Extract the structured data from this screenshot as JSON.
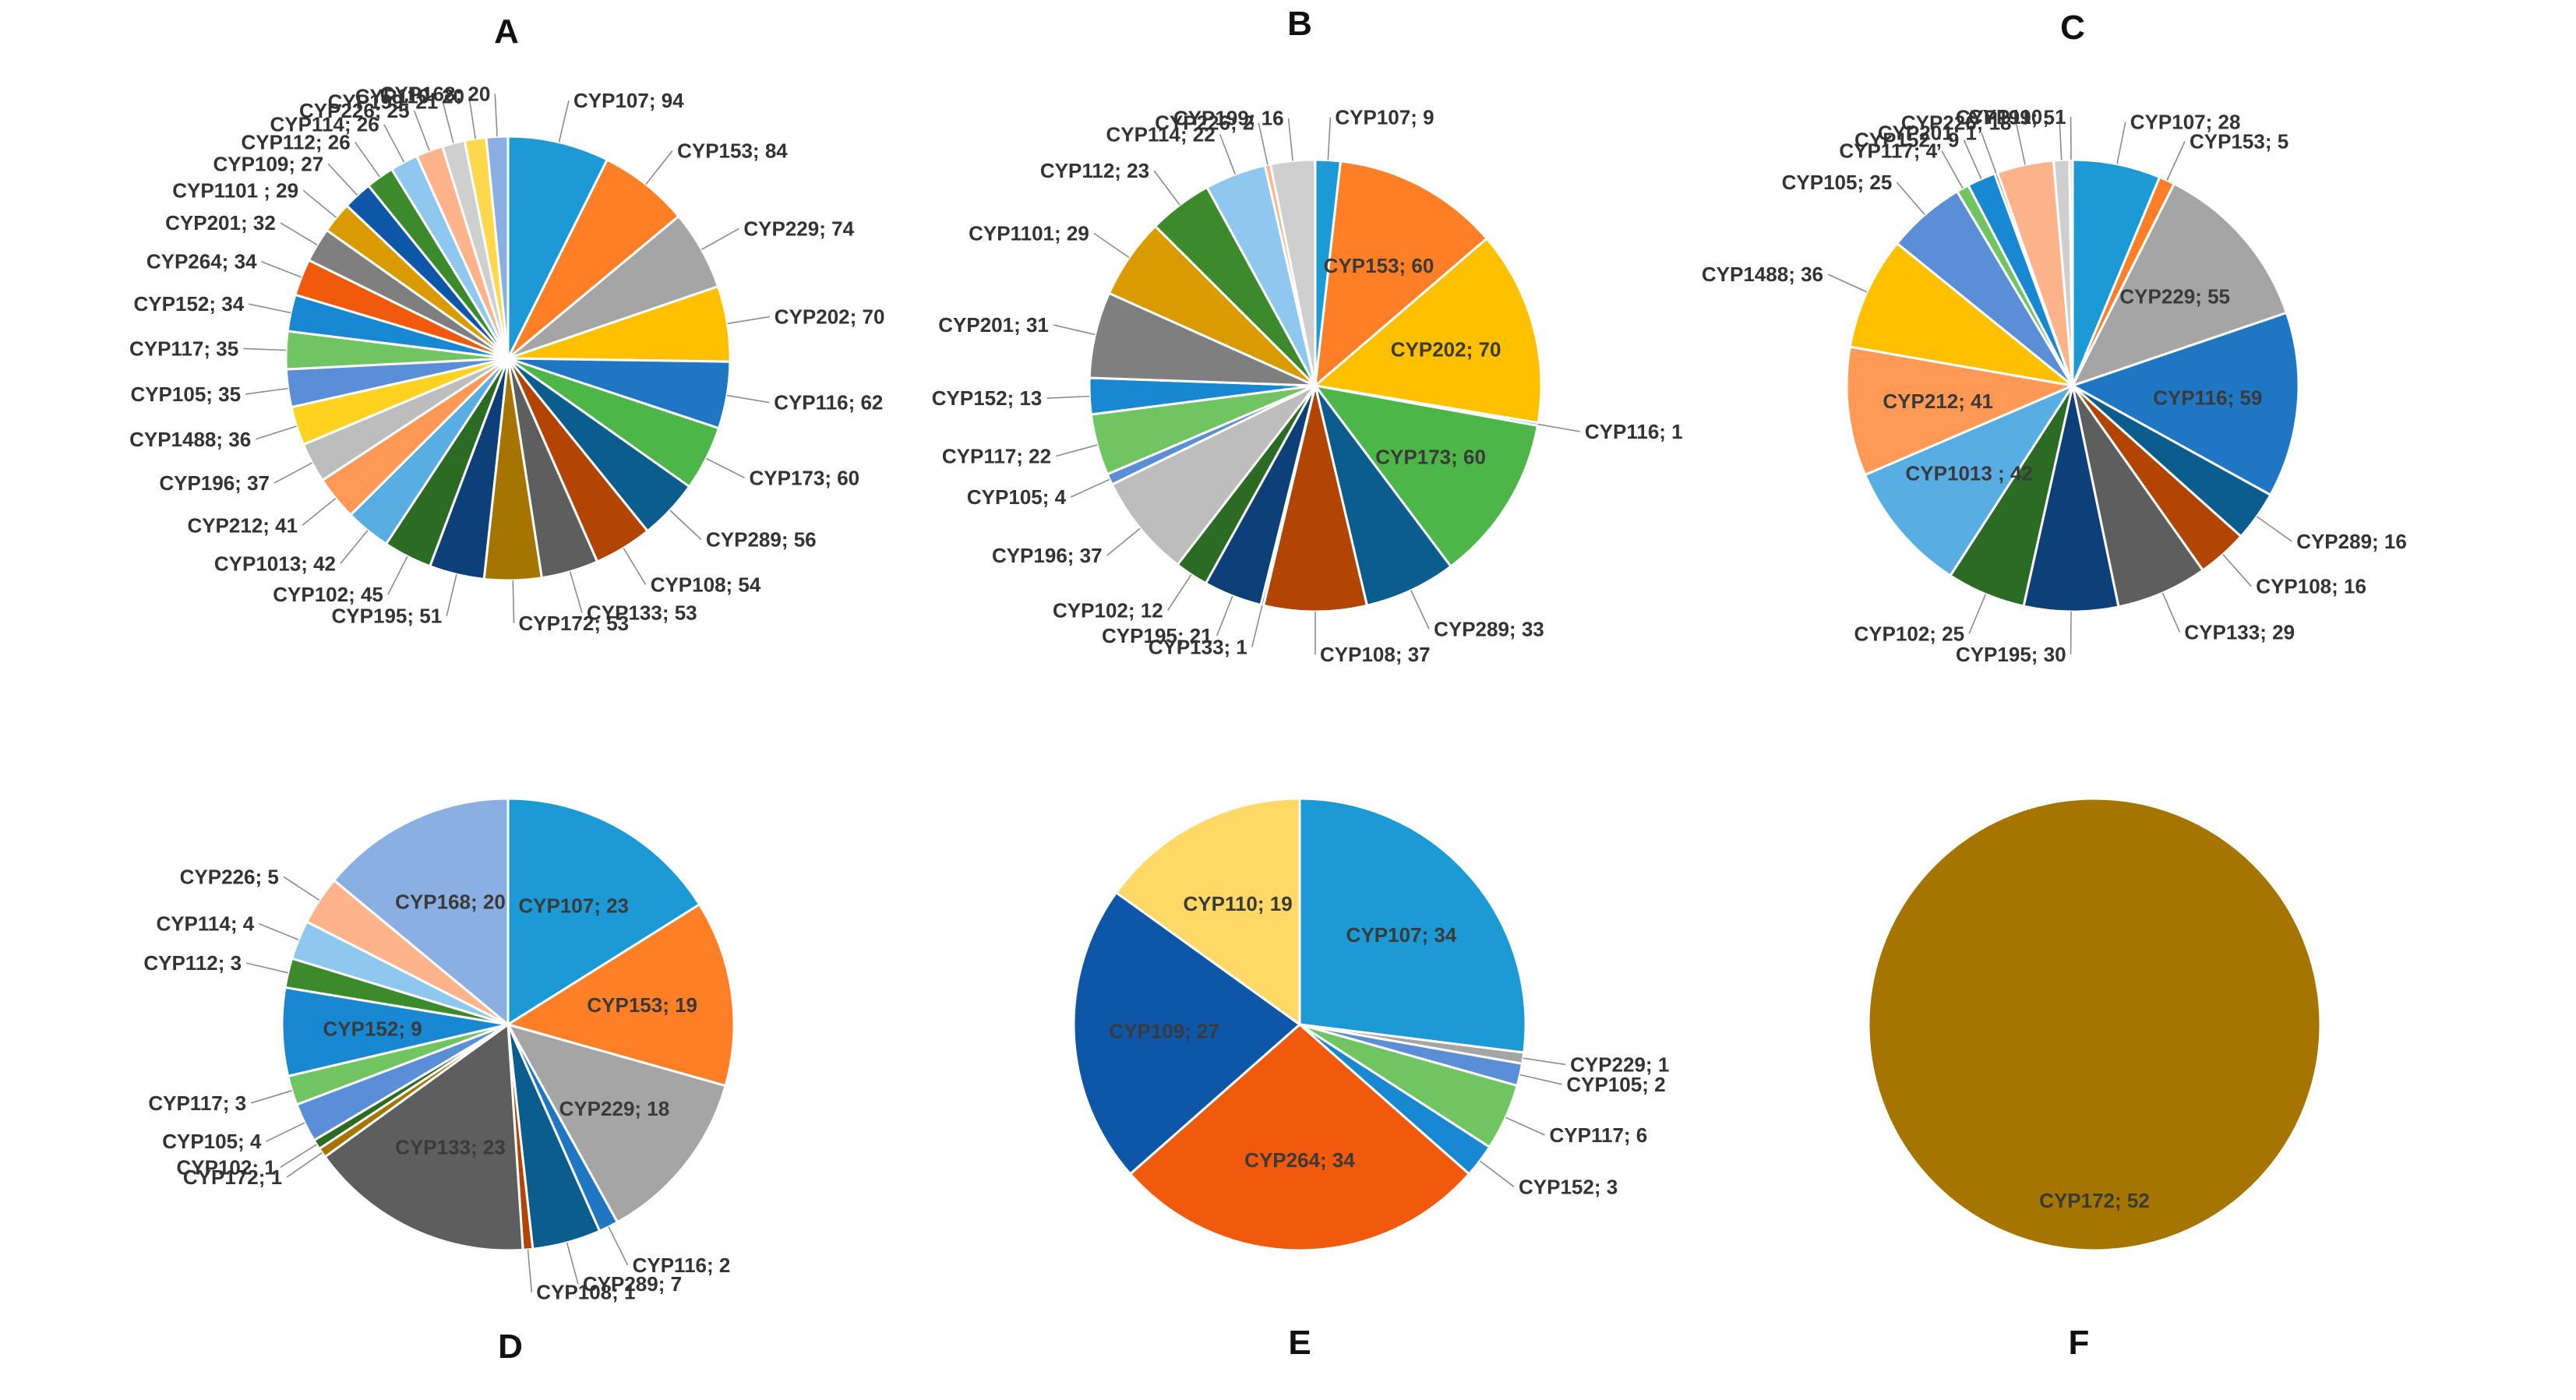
{
  "chart_data": [
    {
      "type": "pie",
      "title": "A",
      "labels": [
        "CYP107",
        "CYP153",
        "CYP229",
        "CYP202",
        "CYP116",
        "CYP173",
        "CYP289",
        "CYP108",
        "CYP133",
        "CYP172",
        "CYP195",
        "CYP102",
        "CYP1013",
        "CYP212",
        "CYP196",
        "CYP1488",
        "CYP105",
        "CYP117",
        "CYP152",
        "CYP264",
        "CYP201",
        "CYP1101",
        "CYP109",
        "CYP112",
        "CYP114",
        "CYP226",
        "CYP199",
        "CYP110",
        "CYP168"
      ],
      "values": [
        94,
        84,
        74,
        70,
        62,
        60,
        56,
        54,
        53,
        53,
        51,
        45,
        42,
        41,
        37,
        36,
        35,
        35,
        34,
        34,
        32,
        29,
        27,
        26,
        26,
        25,
        21,
        20,
        20
      ],
      "colors": [
        "#1b9ad6",
        "#ff7f27",
        "#a5a5a5",
        "#ffc000",
        "#1f77c4",
        "#4db649",
        "#0a5d8c",
        "#b34504",
        "#5e5e5e",
        "#a67500",
        "#0d3f78",
        "#2c6b23",
        "#58aee3",
        "#ff9955",
        "#bdbdbd",
        "#ffd21f",
        "#5a8ed6",
        "#70c462",
        "#1888d2",
        "#f15a0c",
        "#7f7f7f",
        "#d99b00",
        "#0e57a8",
        "#3b8a2c",
        "#8fc8ee",
        "#ffb38a",
        "#cfcfcf",
        "#ffd84d",
        "#8ab0e3"
      ],
      "display_labels": [
        "CYP107; 94",
        "CYP153; 84",
        "CYP229; 74",
        "CYP202; 70",
        "CYP116; 62",
        "CYP173; 60",
        "CYP289; 56",
        "CYP108; 54",
        "CYP133; 53",
        "CYP172; 53",
        "CYP195; 51",
        "CYP102; 45",
        "CYP1013; 42",
        "CYP212; 41",
        "CYP196; 37",
        "CYP1488; 36",
        "CYP105; 35",
        "CYP117; 35",
        "CYP152; 34",
        "CYP264; 34",
        "CYP201; 32",
        "CYP1101 ; 29",
        "CYP109; 27",
        "CYP112; 26",
        "CYP114; 26",
        "CYP226; 25",
        "CYP199; 21",
        "CYP110; 20",
        "CYP168; 20"
      ],
      "label_placement": [
        "out",
        "out",
        "out",
        "out",
        "out",
        "out",
        "out",
        "out",
        "out",
        "out",
        "out",
        "out",
        "out",
        "out",
        "out",
        "out",
        "out",
        "out",
        "out",
        "out",
        "out",
        "out",
        "out",
        "out",
        "out",
        "out",
        "out",
        "out",
        "out"
      ]
    },
    {
      "type": "pie",
      "title": "B",
      "labels": [
        "CYP107",
        "CYP153",
        "CYP202",
        "CYP116",
        "CYP173",
        "CYP289",
        "CYP108",
        "CYP133",
        "CYP195",
        "CYP102",
        "CYP196",
        "CYP105",
        "CYP117",
        "CYP152",
        "CYP201",
        "CYP1101",
        "CYP112",
        "CYP114",
        "CYP226",
        "CYP199"
      ],
      "values": [
        9,
        60,
        70,
        1,
        60,
        33,
        37,
        1,
        21,
        12,
        37,
        4,
        22,
        13,
        31,
        29,
        23,
        22,
        2,
        16
      ],
      "colors": [
        "#1b9ad6",
        "#ff7f27",
        "#ffc000",
        "#1f77c4",
        "#4db649",
        "#0a5d8c",
        "#b34504",
        "#5e5e5e",
        "#0d3f78",
        "#2c6b23",
        "#bdbdbd",
        "#5a8ed6",
        "#70c462",
        "#1888d2",
        "#7f7f7f",
        "#d99b00",
        "#3b8a2c",
        "#8fc8ee",
        "#ffb38a",
        "#cfcfcf"
      ],
      "display_labels": [
        "CYP107; 9",
        "CYP153; 60",
        "CYP202; 70",
        "CYP116; 1",
        "CYP173; 60",
        "CYP289; 33",
        "CYP108; 37",
        "CYP133; 1",
        "CYP195; 21",
        "CYP102; 12",
        "CYP196; 37",
        "CYP105; 4",
        "CYP117; 22",
        "CYP152; 13",
        "CYP201; 31",
        "CYP1101; 29",
        "CYP112; 23",
        "CYP114; 22",
        "CYP226; 2",
        "CYP199; 16"
      ],
      "label_placement": [
        "out",
        "in",
        "in",
        "out",
        "in",
        "out",
        "out",
        "out",
        "out",
        "out",
        "out",
        "out",
        "out",
        "out",
        "out",
        "out",
        "out",
        "out",
        "out",
        "out"
      ]
    },
    {
      "type": "pie",
      "title": "C",
      "labels": [
        "CYP107",
        "CYP153",
        "CYP229",
        "CYP116",
        "CYP289",
        "CYP108",
        "CYP133",
        "CYP195",
        "CYP102",
        "CYP1013",
        "CYP212",
        "CYP1488",
        "CYP105",
        "CYP117",
        "CYP152",
        "CYP201",
        "CYP226",
        "CYP199",
        "CYP110"
      ],
      "values": [
        28,
        5,
        55,
        59,
        16,
        16,
        29,
        30,
        25,
        42,
        41,
        36,
        25,
        4,
        9,
        1,
        18,
        5,
        1
      ],
      "colors": [
        "#1b9ad6",
        "#ff7f27",
        "#a5a5a5",
        "#1f77c4",
        "#0a5d8c",
        "#b34504",
        "#5e5e5e",
        "#0d3f78",
        "#2c6b23",
        "#58aee3",
        "#ff9955",
        "#ffc000",
        "#5a8ed6",
        "#70c462",
        "#1888d2",
        "#7f7f7f",
        "#ffb38a",
        "#cfcfcf",
        "#ffd84d"
      ],
      "display_labels": [
        "CYP107; 28",
        "CYP153; 5",
        "CYP229; 55",
        "CYP116; 59",
        "CYP289; 16",
        "CYP108; 16",
        "CYP133; 29",
        "CYP195; 30",
        "CYP102; 25",
        "CYP1013 ; 42",
        "CYP212; 41",
        "CYP1488; 36",
        "CYP105; 25",
        "CYP117; 4",
        "CYP152 ; 9",
        "CYP201; 1",
        "CYP226; 18",
        "CYP199; 5",
        "CYP110; 1"
      ],
      "label_placement": [
        "out",
        "out",
        "in",
        "in",
        "out",
        "out",
        "out",
        "out",
        "out",
        "in",
        "in",
        "out",
        "out",
        "out",
        "out",
        "out",
        "out",
        "out",
        "out"
      ]
    },
    {
      "type": "pie",
      "title": "D",
      "labels": [
        "CYP107",
        "CYP153",
        "CYP229",
        "CYP116",
        "CYP289",
        "CYP108",
        "CYP133",
        "CYP172",
        "CYP102",
        "CYP105",
        "CYP117",
        "CYP152",
        "CYP112",
        "CYP114",
        "CYP226",
        "CYP168"
      ],
      "values": [
        23,
        19,
        18,
        2,
        7,
        1,
        23,
        1,
        1,
        4,
        3,
        9,
        3,
        4,
        5,
        20
      ],
      "colors": [
        "#1b9ad6",
        "#ff7f27",
        "#a5a5a5",
        "#1f77c4",
        "#0a5d8c",
        "#b34504",
        "#5e5e5e",
        "#a67500",
        "#2c6b23",
        "#5a8ed6",
        "#70c462",
        "#1888d2",
        "#3b8a2c",
        "#8fc8ee",
        "#ffb38a",
        "#8ab0e3"
      ],
      "display_labels": [
        "CYP107; 23",
        "CYP153; 19",
        "CYP229; 18",
        "CYP116; 2",
        "CYP289; 7",
        "CYP108; 1",
        "CYP133; 23",
        "CYP172; 1",
        "CYP102; 1",
        "CYP105; 4",
        "CYP117; 3",
        "CYP152; 9",
        "CYP112; 3",
        "CYP114; 4",
        "CYP226; 5",
        "CYP168; 20"
      ],
      "label_placement": [
        "in",
        "in",
        "in",
        "out",
        "out",
        "out",
        "in",
        "out",
        "out",
        "out",
        "out",
        "in",
        "out",
        "out",
        "out",
        "in"
      ]
    },
    {
      "type": "pie",
      "title": "E",
      "labels": [
        "CYP107",
        "CYP229",
        "CYP105",
        "CYP117",
        "CYP152",
        "CYP264",
        "CYP109",
        "CYP110"
      ],
      "values": [
        34,
        1,
        2,
        6,
        3,
        34,
        27,
        19
      ],
      "colors": [
        "#1b9ad6",
        "#a5a5a5",
        "#5a8ed6",
        "#70c462",
        "#1888d2",
        "#f15a0c",
        "#0e57a8",
        "#ffd966"
      ],
      "display_labels": [
        "CYP107; 34",
        "CYP229; 1",
        "CYP105; 2",
        "CYP117; 6",
        "CYP152; 3",
        "CYP264; 34",
        "CYP109; 27",
        "CYP110; 19"
      ],
      "label_placement": [
        "in",
        "out",
        "out",
        "out",
        "out",
        "in",
        "in",
        "in"
      ]
    },
    {
      "type": "pie",
      "title": "F",
      "labels": [
        "CYP172"
      ],
      "values": [
        52
      ],
      "colors": [
        "#a67500"
      ],
      "display_labels": [
        "CYP172; 52"
      ],
      "label_placement": [
        "in"
      ]
    }
  ]
}
